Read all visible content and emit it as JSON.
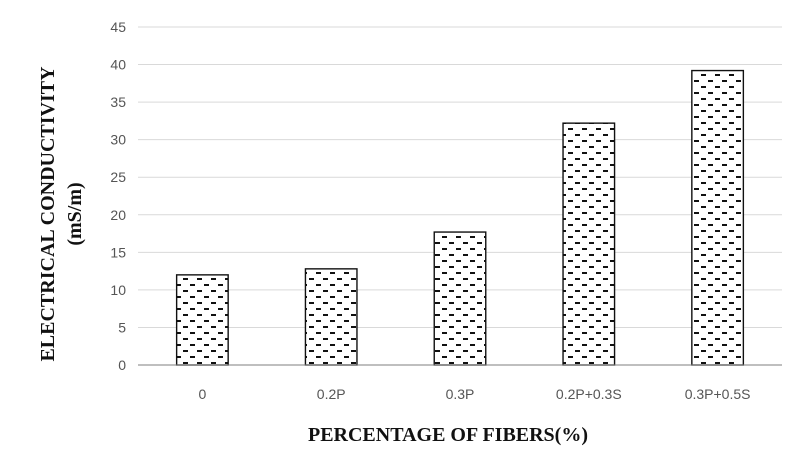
{
  "chart_data": {
    "type": "bar",
    "title": "",
    "xlabel": "PERCENTAGE OF FIBERS(%)",
    "ylabel_lines": [
      "ELECTRICAL CONDUCTIVITY",
      "(mS/m)"
    ],
    "categories": [
      "0",
      "0.2P",
      "0.3P",
      "0.2P+0.3S",
      "0.3P+0.5S"
    ],
    "values": [
      12,
      12.8,
      17.7,
      32.2,
      39.2
    ],
    "ylim": [
      0,
      45
    ],
    "yticks": [
      0,
      5,
      10,
      15,
      20,
      25,
      30,
      35,
      40,
      45
    ],
    "grid": true,
    "legend": "none",
    "bar_fill": "dotted-dash pattern",
    "colors": {
      "bar_stroke": "#111111",
      "grid": "#d9d9d9",
      "axis": "#7f7f7f"
    }
  }
}
